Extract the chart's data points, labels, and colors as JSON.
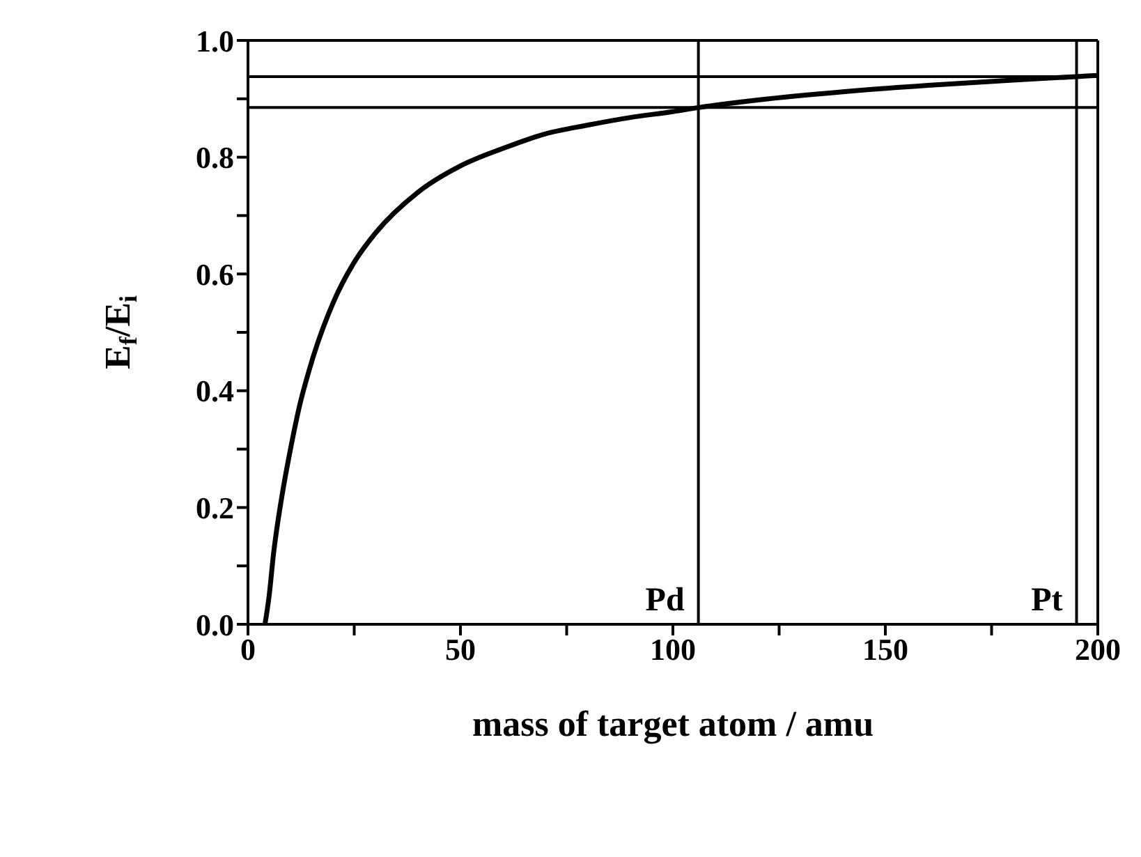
{
  "chart_data": {
    "type": "line",
    "xlabel": "mass of target atom / amu",
    "ylabel": "E$_{f}$/E$_{i}$",
    "series": [
      {
        "color": "#000000",
        "x": [
          4,
          5,
          6,
          8,
          10,
          12,
          15,
          20,
          25,
          30,
          40,
          50,
          60,
          70,
          80,
          90,
          100,
          106,
          120,
          140,
          160,
          180,
          195,
          200
        ],
        "values": [
          0,
          0.05,
          0.12,
          0.22,
          0.3,
          0.37,
          0.45,
          0.55,
          0.62,
          0.67,
          0.74,
          0.785,
          0.815,
          0.84,
          0.855,
          0.868,
          0.878,
          0.885,
          0.898,
          0.912,
          0.923,
          0.932,
          0.938,
          0.94
        ]
      }
    ],
    "xlim": [
      0,
      200
    ],
    "ylim": [
      0,
      1
    ],
    "xticks": [
      0,
      {
        "value": 25,
        "label": null
      },
      50,
      {
        "value": 75,
        "label": null
      },
      100,
      {
        "value": 125,
        "label": null
      },
      150,
      {
        "value": 175,
        "label": null
      },
      200
    ],
    "yticks": [
      {
        "value": 0,
        "label": "0.0"
      },
      {
        "value": 0.1,
        "label": null
      },
      {
        "value": 0.2,
        "label": "0.2"
      },
      {
        "value": 0.3,
        "label": null
      },
      {
        "value": 0.4,
        "label": "0.4"
      },
      {
        "value": 0.5,
        "label": null
      },
      {
        "value": 0.6,
        "label": "0.6"
      },
      {
        "value": 0.7,
        "label": null
      },
      {
        "value": 0.8,
        "label": "0.8"
      },
      {
        "value": 0.9,
        "label": null
      },
      {
        "value": 1,
        "label": "1.0"
      }
    ],
    "ref_lines": [
      {
        "axis": "x",
        "value": 106,
        "label": "Pd"
      },
      {
        "axis": "x",
        "value": 195,
        "label": "Pt"
      },
      {
        "axis": "y",
        "value": 0.885
      },
      {
        "axis": "y",
        "value": 0.938
      }
    ],
    "legend": false,
    "marker": "none",
    "line_style": "solid"
  }
}
